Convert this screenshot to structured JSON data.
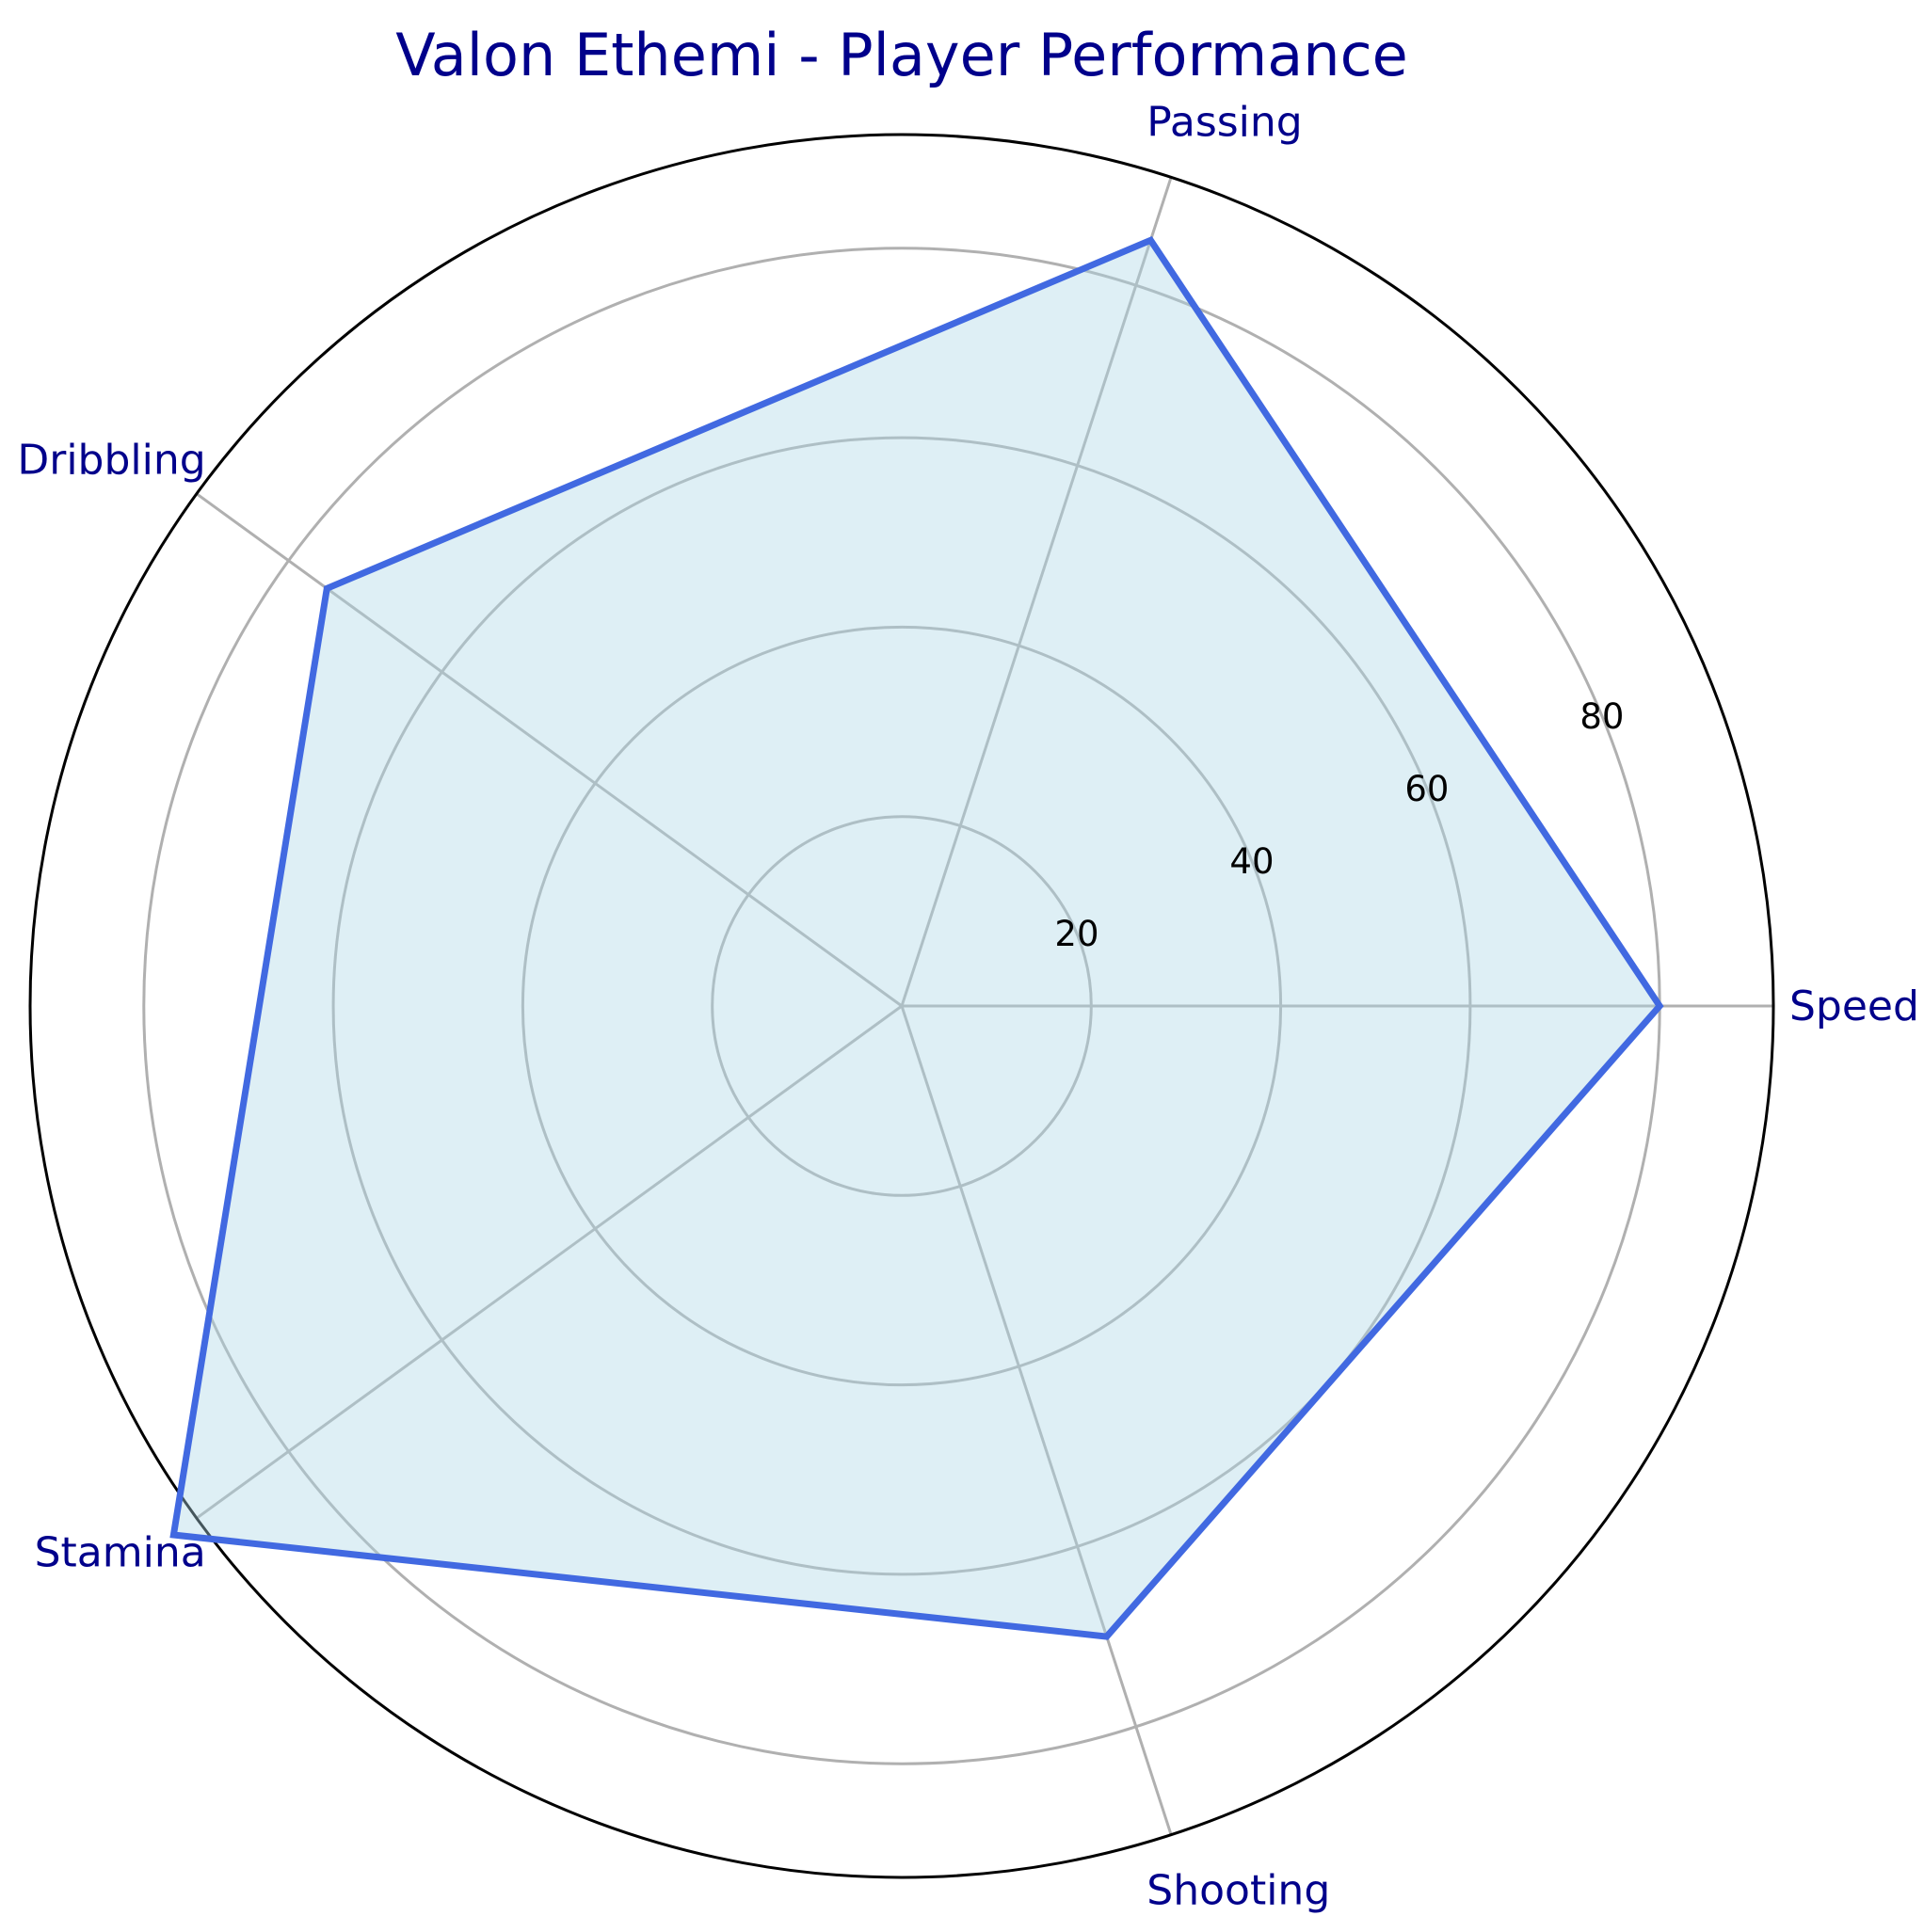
{
  "chart_data": {
    "type": "radar",
    "title": "Valon Ethemi - Player Performance",
    "categories": [
      "Speed",
      "Passing",
      "Dribbling",
      "Stamina",
      "Shooting"
    ],
    "series": [
      {
        "values": [
          80,
          85,
          75,
          95,
          70
        ]
      }
    ],
    "radial_ticks": [
      20,
      40,
      60,
      80
    ],
    "rlim": [
      0,
      92
    ],
    "grid": true,
    "colors": {
      "line": "#4169e1",
      "fill": "#add8e6",
      "grid": "#b0b0b0",
      "outer_circle": "#000000",
      "labels": "#00008b"
    }
  }
}
